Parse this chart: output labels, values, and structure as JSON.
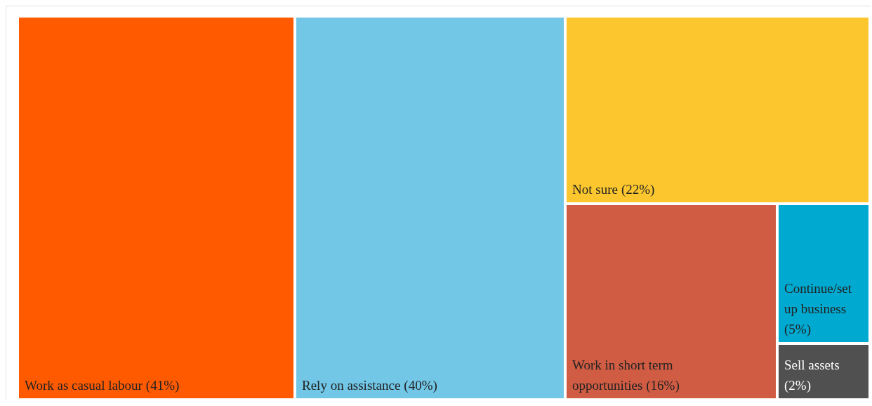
{
  "chart_data": {
    "type": "other",
    "categories": [
      "Work as casual labour",
      "Rely on assistance",
      "Not sure",
      "Work in short term opportunities",
      "Continue/set up business",
      "Sell assets"
    ],
    "values": [
      41,
      40,
      22,
      16,
      5,
      2
    ],
    "value_labels": [
      "(41%)",
      "(40%)",
      "(22%)",
      "(16%)",
      "(5%)",
      "(2%)"
    ],
    "colors": [
      "#ff5a00",
      "#72c6e6",
      "#fcc72e",
      "#d05c44",
      "#00a9cf",
      "#505050"
    ]
  }
}
